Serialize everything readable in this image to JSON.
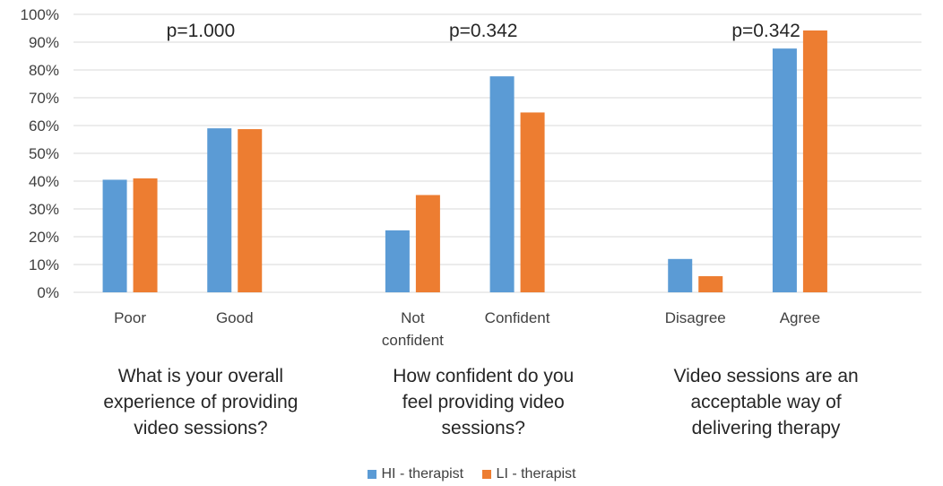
{
  "chart_data": {
    "type": "bar",
    "y_ticks": [
      "0%",
      "10%",
      "20%",
      "30%",
      "40%",
      "50%",
      "60%",
      "70%",
      "80%",
      "90%",
      "100%"
    ],
    "ylim": [
      0,
      100
    ],
    "grid": true,
    "legend_position": "bottom",
    "series": [
      {
        "name": "HI - therapist",
        "color": "#5B9BD5"
      },
      {
        "name": "LI - therapist",
        "color": "#ED7D31"
      }
    ],
    "groups": [
      {
        "p_value": "p=1.000",
        "question": [
          "What is your overall",
          "experience of providing",
          "video sessions?"
        ],
        "categories": [
          {
            "label": [
              "Poor"
            ],
            "values": [
              40.5,
              41
            ]
          },
          {
            "label": [
              "Good"
            ],
            "values": [
              59,
              58.7
            ]
          }
        ]
      },
      {
        "p_value": "p=0.342",
        "question": [
          "How confident do you",
          "feel providing video",
          "sessions?"
        ],
        "categories": [
          {
            "label": [
              "Not",
              "confident"
            ],
            "values": [
              22.3,
              35
            ]
          },
          {
            "label": [
              "Confident"
            ],
            "values": [
              77.7,
              64.7
            ]
          }
        ]
      },
      {
        "p_value": "p=0.342",
        "question": [
          "Video sessions are an",
          "acceptable way of",
          "delivering therapy"
        ],
        "categories": [
          {
            "label": [
              "Disagree"
            ],
            "values": [
              12,
              5.8
            ]
          },
          {
            "label": [
              "Agree"
            ],
            "values": [
              87.7,
              94.2
            ]
          }
        ]
      }
    ]
  }
}
